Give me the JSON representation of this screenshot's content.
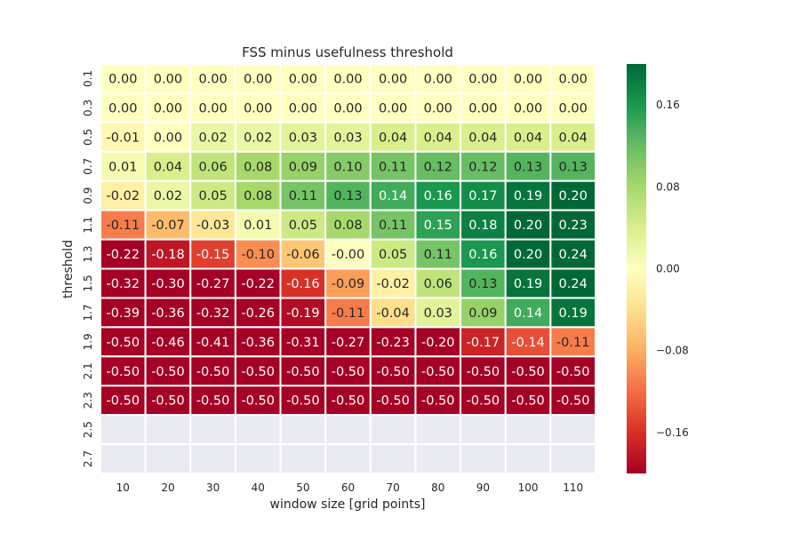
{
  "chart_data": {
    "type": "heatmap",
    "title": "FSS minus usefulness threshold",
    "xlabel": "window size [grid points]",
    "ylabel": "threshold",
    "x_categories": [
      "10",
      "20",
      "30",
      "40",
      "50",
      "60",
      "70",
      "80",
      "90",
      "100",
      "110"
    ],
    "y_categories": [
      "0.1",
      "0.3",
      "0.5",
      "0.7",
      "0.9",
      "1.1",
      "1.3",
      "1.5",
      "1.7",
      "1.9",
      "2.1",
      "2.3",
      "2.5",
      "2.7"
    ],
    "values": [
      [
        "0.00",
        "0.00",
        "0.00",
        "0.00",
        "0.00",
        "0.00",
        "0.00",
        "0.00",
        "0.00",
        "0.00",
        "0.00"
      ],
      [
        "0.00",
        "0.00",
        "0.00",
        "0.00",
        "0.00",
        "0.00",
        "0.00",
        "0.00",
        "0.00",
        "0.00",
        "0.00"
      ],
      [
        "-0.01",
        "0.00",
        "0.02",
        "0.02",
        "0.03",
        "0.03",
        "0.04",
        "0.04",
        "0.04",
        "0.04",
        "0.04"
      ],
      [
        "0.01",
        "0.04",
        "0.06",
        "0.08",
        "0.09",
        "0.10",
        "0.11",
        "0.12",
        "0.12",
        "0.13",
        "0.13"
      ],
      [
        "-0.02",
        "0.02",
        "0.05",
        "0.08",
        "0.11",
        "0.13",
        "0.14",
        "0.16",
        "0.17",
        "0.19",
        "0.20"
      ],
      [
        "-0.11",
        "-0.07",
        "-0.03",
        "0.01",
        "0.05",
        "0.08",
        "0.11",
        "0.15",
        "0.18",
        "0.20",
        "0.23"
      ],
      [
        "-0.22",
        "-0.18",
        "-0.15",
        "-0.10",
        "-0.06",
        "-0.00",
        "0.05",
        "0.11",
        "0.16",
        "0.20",
        "0.24"
      ],
      [
        "-0.32",
        "-0.30",
        "-0.27",
        "-0.22",
        "-0.16",
        "-0.09",
        "-0.02",
        "0.06",
        "0.13",
        "0.19",
        "0.24"
      ],
      [
        "-0.39",
        "-0.36",
        "-0.32",
        "-0.26",
        "-0.19",
        "-0.11",
        "-0.04",
        "0.03",
        "0.09",
        "0.14",
        "0.19"
      ],
      [
        "-0.50",
        "-0.46",
        "-0.41",
        "-0.36",
        "-0.31",
        "-0.27",
        "-0.23",
        "-0.20",
        "-0.17",
        "-0.14",
        "-0.11"
      ],
      [
        "-0.50",
        "-0.50",
        "-0.50",
        "-0.50",
        "-0.50",
        "-0.50",
        "-0.50",
        "-0.50",
        "-0.50",
        "-0.50",
        "-0.50"
      ],
      [
        "-0.50",
        "-0.50",
        "-0.50",
        "-0.50",
        "-0.50",
        "-0.50",
        "-0.50",
        "-0.50",
        "-0.50",
        "-0.50",
        "-0.50"
      ],
      [
        null,
        null,
        null,
        null,
        null,
        null,
        null,
        null,
        null,
        null,
        null
      ],
      [
        null,
        null,
        null,
        null,
        null,
        null,
        null,
        null,
        null,
        null,
        null
      ]
    ],
    "colormap": "RdYlGn",
    "color_range": [
      -0.2,
      0.2
    ],
    "missing_color": "#eaeaf2",
    "colorbar": {
      "ticks": [
        "0.16",
        "0.08",
        "0.00",
        "−0.08",
        "−0.16"
      ],
      "tick_values": [
        0.16,
        0.08,
        0.0,
        -0.08,
        -0.16
      ]
    }
  }
}
